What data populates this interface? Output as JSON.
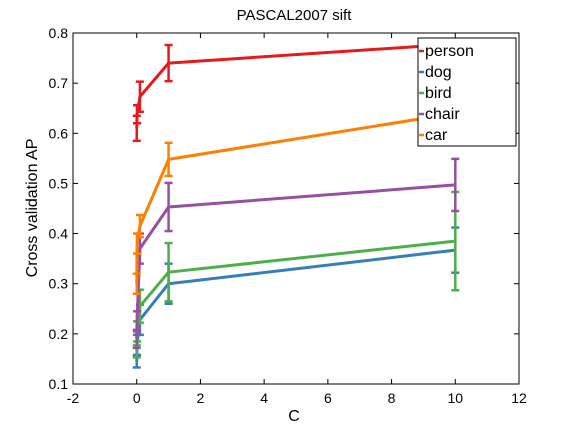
{
  "chart_data": {
    "type": "line",
    "title": "PASCAL2007 sift",
    "xlabel": "C",
    "ylabel": "Cross validation AP",
    "xlim": [
      -2,
      12
    ],
    "ylim": [
      0.1,
      0.8
    ],
    "xticks": [
      -2,
      0,
      2,
      4,
      6,
      8,
      10,
      12
    ],
    "yticks": [
      0.1,
      0.2,
      0.3,
      0.4,
      0.5,
      0.6,
      0.7,
      0.8
    ],
    "grid": false,
    "legend_position": "top-right",
    "x": [
      0.001,
      0.01,
      0.1,
      1,
      10
    ],
    "series": [
      {
        "name": "person",
        "color": "#e41a1c",
        "values": [
          0.61,
          0.638,
          0.673,
          0.74,
          0.778
        ],
        "errors": [
          0.025,
          0.018,
          0.03,
          0.036,
          0.01
        ]
      },
      {
        "name": "dog",
        "color": "#377eb8",
        "values": [
          0.145,
          0.178,
          0.228,
          0.3,
          0.367
        ],
        "errors": [
          0.012,
          0.02,
          0.03,
          0.04,
          0.045
        ]
      },
      {
        "name": "bird",
        "color": "#4daf4a",
        "values": [
          0.165,
          0.205,
          0.255,
          0.323,
          0.385
        ],
        "errors": [
          0.012,
          0.02,
          0.033,
          0.058,
          0.098
        ]
      },
      {
        "name": "chair",
        "color": "#984ea3",
        "values": [
          0.19,
          0.225,
          0.37,
          0.453,
          0.497
        ],
        "errors": [
          0.018,
          0.02,
          0.03,
          0.048,
          0.052
        ]
      },
      {
        "name": "car",
        "color": "#ff7f00",
        "values": [
          0.3,
          0.38,
          0.415,
          0.548,
          0.64
        ],
        "errors": [
          0.02,
          0.02,
          0.022,
          0.033,
          0.01
        ]
      }
    ]
  }
}
